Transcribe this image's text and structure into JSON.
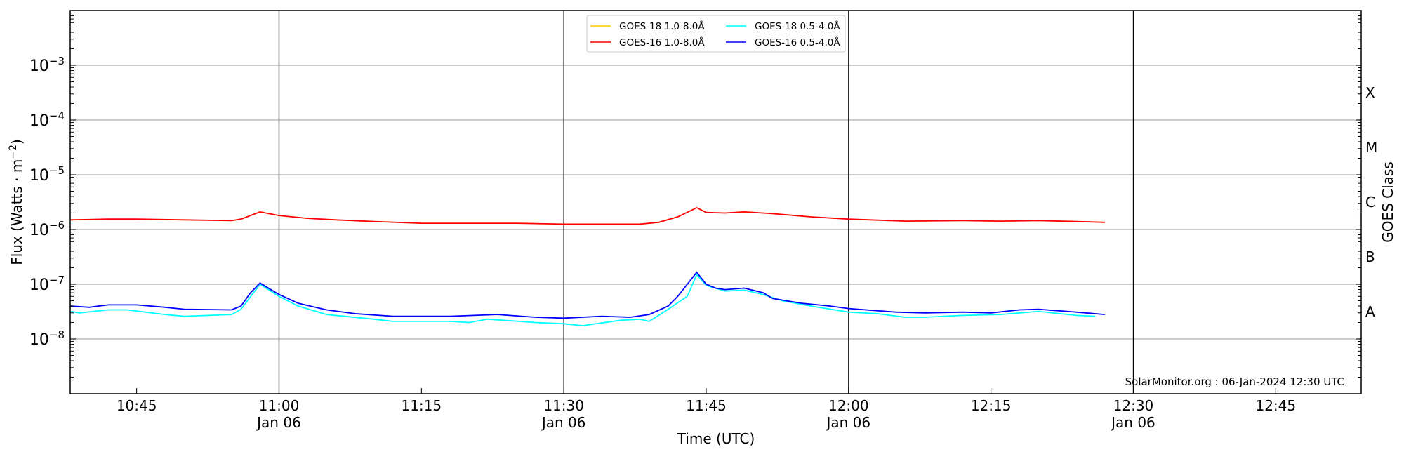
{
  "chart_data": {
    "type": "line",
    "xlabel": "Time (UTC)",
    "ylabel": "Flux (Watts · m^-2)",
    "ylabel_right": "GOES Class",
    "y_scale": "log",
    "ylim": [
      1e-09,
      0.01
    ],
    "xlim": [
      "10:38",
      "12:54"
    ],
    "x_ticks": [
      {
        "time": "10:45",
        "label": "10:45",
        "sublabel": ""
      },
      {
        "time": "11:00",
        "label": "11:00",
        "sublabel": "Jan 06"
      },
      {
        "time": "11:15",
        "label": "11:15",
        "sublabel": ""
      },
      {
        "time": "11:30",
        "label": "11:30",
        "sublabel": "Jan 06"
      },
      {
        "time": "11:45",
        "label": "11:45",
        "sublabel": ""
      },
      {
        "time": "12:00",
        "label": "12:00",
        "sublabel": "Jan 06"
      },
      {
        "time": "12:15",
        "label": "12:15",
        "sublabel": ""
      },
      {
        "time": "12:30",
        "label": "12:30",
        "sublabel": "Jan 06"
      },
      {
        "time": "12:45",
        "label": "12:45",
        "sublabel": ""
      }
    ],
    "y_ticks": [
      {
        "value": 1e-08,
        "exp": "−8"
      },
      {
        "value": 1e-07,
        "exp": "−7"
      },
      {
        "value": 1e-06,
        "exp": "−6"
      },
      {
        "value": 1e-05,
        "exp": "−5"
      },
      {
        "value": 0.0001,
        "exp": "−4"
      },
      {
        "value": 0.001,
        "exp": "−3"
      }
    ],
    "goes_classes": [
      {
        "label": "A",
        "value": 3.16e-08
      },
      {
        "label": "B",
        "value": 3.16e-07
      },
      {
        "label": "C",
        "value": 3.16e-06
      },
      {
        "label": "M",
        "value": 3.16e-05
      },
      {
        "label": "X",
        "value": 0.000316
      }
    ],
    "vertical_lines": [
      "11:00",
      "11:30",
      "12:00",
      "12:30"
    ],
    "grid": "horizontal at decades",
    "legend_placement": "top-center",
    "annotation": "SolarMonitor.org : 06-Jan-2024 12:30 UTC",
    "series": [
      {
        "name": "GOES-18 1.0-8.0Å",
        "color": "#ffcc00",
        "x": [],
        "values": []
      },
      {
        "name": "GOES-16 1.0-8.0Å",
        "color": "#ff0000",
        "x": [
          "10:38",
          "10:42",
          "10:45",
          "10:50",
          "10:55",
          "10:56",
          "10:58",
          "11:00",
          "11:03",
          "11:06",
          "11:10",
          "11:15",
          "11:20",
          "11:25",
          "11:30",
          "11:34",
          "11:38",
          "11:40",
          "11:42",
          "11:44",
          "11:45",
          "11:47",
          "11:49",
          "11:52",
          "11:56",
          "12:00",
          "12:06",
          "12:12",
          "12:16",
          "12:20",
          "12:24",
          "12:27"
        ],
        "values": [
          1.5e-06,
          1.55e-06,
          1.55e-06,
          1.5e-06,
          1.45e-06,
          1.55e-06,
          2.1e-06,
          1.8e-06,
          1.6e-06,
          1.5e-06,
          1.4e-06,
          1.3e-06,
          1.3e-06,
          1.3e-06,
          1.25e-06,
          1.25e-06,
          1.25e-06,
          1.35e-06,
          1.7e-06,
          2.5e-06,
          2.05e-06,
          2e-06,
          2.1e-06,
          1.95e-06,
          1.7e-06,
          1.55e-06,
          1.42e-06,
          1.45e-06,
          1.42e-06,
          1.45e-06,
          1.4e-06,
          1.35e-06
        ]
      },
      {
        "name": "GOES-18 0.5-4.0Å",
        "color": "#00ffff",
        "x": [
          "10:38",
          "10:39",
          "10:42",
          "10:44",
          "10:48",
          "10:50",
          "10:55",
          "10:56",
          "10:58",
          "11:00",
          "11:02",
          "11:05",
          "11:10",
          "11:12",
          "11:18",
          "11:20",
          "11:22",
          "11:27",
          "11:30",
          "11:32",
          "11:36",
          "11:38",
          "11:39",
          "11:41",
          "11:43",
          "11:44",
          "11:45",
          "11:47",
          "11:49",
          "11:51",
          "11:53",
          "11:56",
          "12:00",
          "12:03",
          "12:06",
          "12:08",
          "12:12",
          "12:16",
          "12:20",
          "12:24",
          "12:26"
        ],
        "values": [
          3.2e-08,
          3e-08,
          3.4e-08,
          3.4e-08,
          2.8e-08,
          2.6e-08,
          2.8e-08,
          3.5e-08,
          1e-07,
          6e-08,
          4e-08,
          2.8e-08,
          2.3e-08,
          2.1e-08,
          2.1e-08,
          2e-08,
          2.3e-08,
          2e-08,
          1.9e-08,
          1.75e-08,
          2.2e-08,
          2.3e-08,
          2.1e-08,
          3.5e-08,
          6e-08,
          1.5e-07,
          9.5e-08,
          7.5e-08,
          7.8e-08,
          6.5e-08,
          5e-08,
          4e-08,
          3.1e-08,
          2.9e-08,
          2.5e-08,
          2.5e-08,
          2.7e-08,
          2.8e-08,
          3.2e-08,
          2.7e-08,
          2.6e-08
        ]
      },
      {
        "name": "GOES-16 0.5-4.0Å",
        "color": "#0000ff",
        "x": [
          "10:38",
          "10:40",
          "10:42",
          "10:45",
          "10:48",
          "10:50",
          "10:55",
          "10:56",
          "10:57",
          "10:58",
          "11:00",
          "11:02",
          "11:05",
          "11:08",
          "11:12",
          "11:18",
          "11:23",
          "11:27",
          "11:30",
          "11:34",
          "11:37",
          "11:39",
          "11:41",
          "11:42",
          "11:44",
          "11:45",
          "11:46",
          "11:47",
          "11:49",
          "11:51",
          "11:52",
          "11:55",
          "11:58",
          "12:00",
          "12:05",
          "12:08",
          "12:12",
          "12:15",
          "12:18",
          "12:20",
          "12:24",
          "12:27"
        ],
        "values": [
          4e-08,
          3.8e-08,
          4.2e-08,
          4.2e-08,
          3.8e-08,
          3.5e-08,
          3.4e-08,
          4e-08,
          7e-08,
          1.05e-07,
          6.5e-08,
          4.5e-08,
          3.4e-08,
          2.9e-08,
          2.6e-08,
          2.6e-08,
          2.8e-08,
          2.5e-08,
          2.4e-08,
          2.6e-08,
          2.5e-08,
          2.8e-08,
          4e-08,
          6e-08,
          1.65e-07,
          1e-07,
          8.5e-08,
          8e-08,
          8.5e-08,
          7e-08,
          5.5e-08,
          4.5e-08,
          4e-08,
          3.6e-08,
          3.1e-08,
          3e-08,
          3.1e-08,
          3e-08,
          3.4e-08,
          3.5e-08,
          3.1e-08,
          2.8e-08
        ]
      }
    ]
  }
}
